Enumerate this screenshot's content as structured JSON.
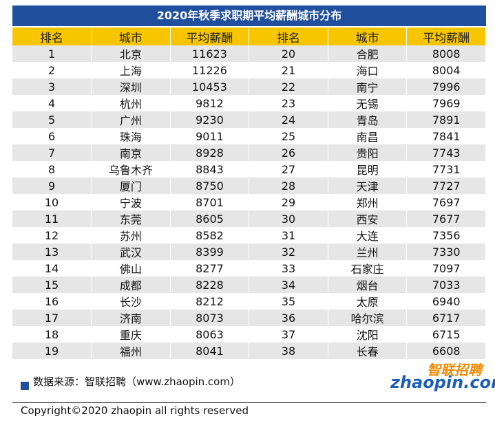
{
  "title": "2020年秋季求职期平均薪酬城市分布",
  "table": {
    "header": [
      "排名",
      "城市",
      "平均薪酬",
      "排名",
      "城市",
      "平均薪酬"
    ],
    "rows": [
      [
        1,
        "北京",
        11623,
        20,
        "合肥",
        8008
      ],
      [
        2,
        "上海",
        11226,
        21,
        "海口",
        8004
      ],
      [
        3,
        "深圳",
        10453,
        22,
        "南宁",
        7996
      ],
      [
        4,
        "杭州",
        9812,
        23,
        "无锡",
        7969
      ],
      [
        5,
        "广州",
        9230,
        24,
        "青岛",
        7891
      ],
      [
        6,
        "珠海",
        9011,
        25,
        "南昌",
        7841
      ],
      [
        7,
        "南京",
        8928,
        26,
        "贵阳",
        7743
      ],
      [
        8,
        "乌鲁木齐",
        8843,
        27,
        "昆明",
        7731
      ],
      [
        9,
        "厦门",
        8750,
        28,
        "天津",
        7727
      ],
      [
        10,
        "宁波",
        8701,
        29,
        "郑州",
        7697
      ],
      [
        11,
        "东莞",
        8605,
        30,
        "西安",
        7677
      ],
      [
        12,
        "苏州",
        8582,
        31,
        "大连",
        7356
      ],
      [
        13,
        "武汉",
        8399,
        32,
        "兰州",
        7330
      ],
      [
        14,
        "佛山",
        8277,
        33,
        "石家庄",
        7097
      ],
      [
        15,
        "成都",
        8228,
        34,
        "烟台",
        7033
      ],
      [
        16,
        "长沙",
        8212,
        35,
        "太原",
        6940
      ],
      [
        17,
        "济南",
        8073,
        36,
        "哈尔滨",
        6717
      ],
      [
        18,
        "重庆",
        8063,
        37,
        "沈阳",
        6715
      ],
      [
        19,
        "福州",
        8041,
        38,
        "长春",
        6608
      ]
    ]
  },
  "source": "数据来源：智联招聘（www.zhaopin.com）",
  "logo": {
    "cn": "智联招聘",
    "en": "zhaopin.com"
  },
  "copyright": "Copyright©2020 zhaopin all rights reserved"
}
